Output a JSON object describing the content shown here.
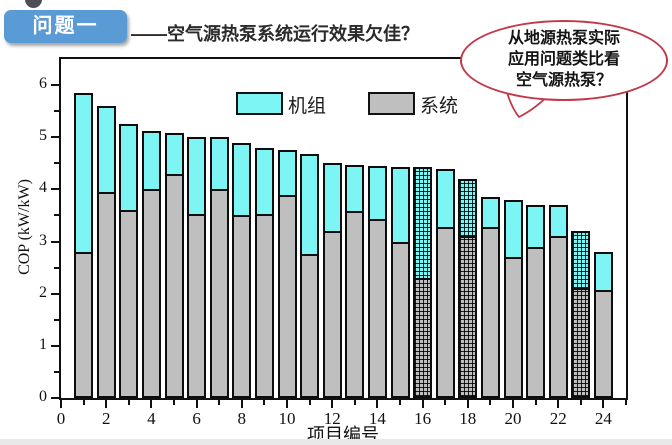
{
  "header": {
    "badge": "问题一",
    "title": "——空气源热泵系统运行效果欠佳？"
  },
  "bubble": {
    "lines": [
      "从地源热泵实际",
      "应用问题类比看",
      "空气源热泵？"
    ]
  },
  "colors": {
    "bar_unit": "#7df5f5",
    "bar_system": "#bfbfbf",
    "bar_border": "#0d0d0d",
    "badge_bg": "#5b9bd5",
    "badge_text": "#ffffff",
    "bubble_border": "#c23a4a",
    "bottom_strip": "#e9e9e9"
  },
  "chart_data": {
    "type": "bar",
    "title": "",
    "xlabel": "项目编号",
    "ylabel": "COP (kW/kW)",
    "xlim": [
      0,
      25
    ],
    "ylim": [
      0,
      6.5
    ],
    "grid": false,
    "legend_position": "top-center-inside",
    "legend": [
      {
        "label": "机组",
        "color": "#7df5f5"
      },
      {
        "label": "系统",
        "color": "#bfbfbf"
      }
    ],
    "x": [
      1,
      2,
      3,
      4,
      5,
      6,
      7,
      8,
      9,
      10,
      11,
      12,
      13,
      14,
      15,
      16,
      17,
      18,
      19,
      20,
      21,
      22,
      23,
      24
    ],
    "series": [
      {
        "name": "机组",
        "color": "#7df5f5",
        "values": [
          5.85,
          5.6,
          5.25,
          5.12,
          5.08,
          5.0,
          5.0,
          4.88,
          4.8,
          4.76,
          4.68,
          4.5,
          4.47,
          4.45,
          4.42,
          4.42,
          4.4,
          4.2,
          3.86,
          3.8,
          3.7,
          3.7,
          3.2,
          2.8
        ]
      },
      {
        "name": "系统",
        "color": "#bfbfbf",
        "values": [
          2.8,
          3.95,
          3.6,
          4.0,
          4.3,
          3.52,
          4.0,
          3.5,
          3.52,
          3.9,
          2.76,
          3.2,
          3.58,
          3.44,
          3.0,
          2.3,
          3.28,
          3.1,
          3.28,
          2.7,
          2.9,
          3.1,
          2.1,
          2.08
        ]
      }
    ],
    "hatched_x": [
      16,
      18,
      23
    ],
    "x_major_ticks": [
      0,
      2,
      4,
      6,
      8,
      10,
      12,
      14,
      16,
      18,
      20,
      22,
      24
    ],
    "x_minor_ticks": [
      1,
      3,
      5,
      7,
      9,
      11,
      13,
      15,
      17,
      19,
      21,
      23,
      25
    ],
    "y_major_ticks": [
      0,
      1,
      2,
      3,
      4,
      5,
      6
    ],
    "y_minor_ticks": [
      0.5,
      1.5,
      2.5,
      3.5,
      4.5,
      5.5
    ],
    "note": "机组 value = total bar height (unit COP); 系统 value = gray lower segment (system COP); bars 16, 18, 23 are crosshatched"
  }
}
